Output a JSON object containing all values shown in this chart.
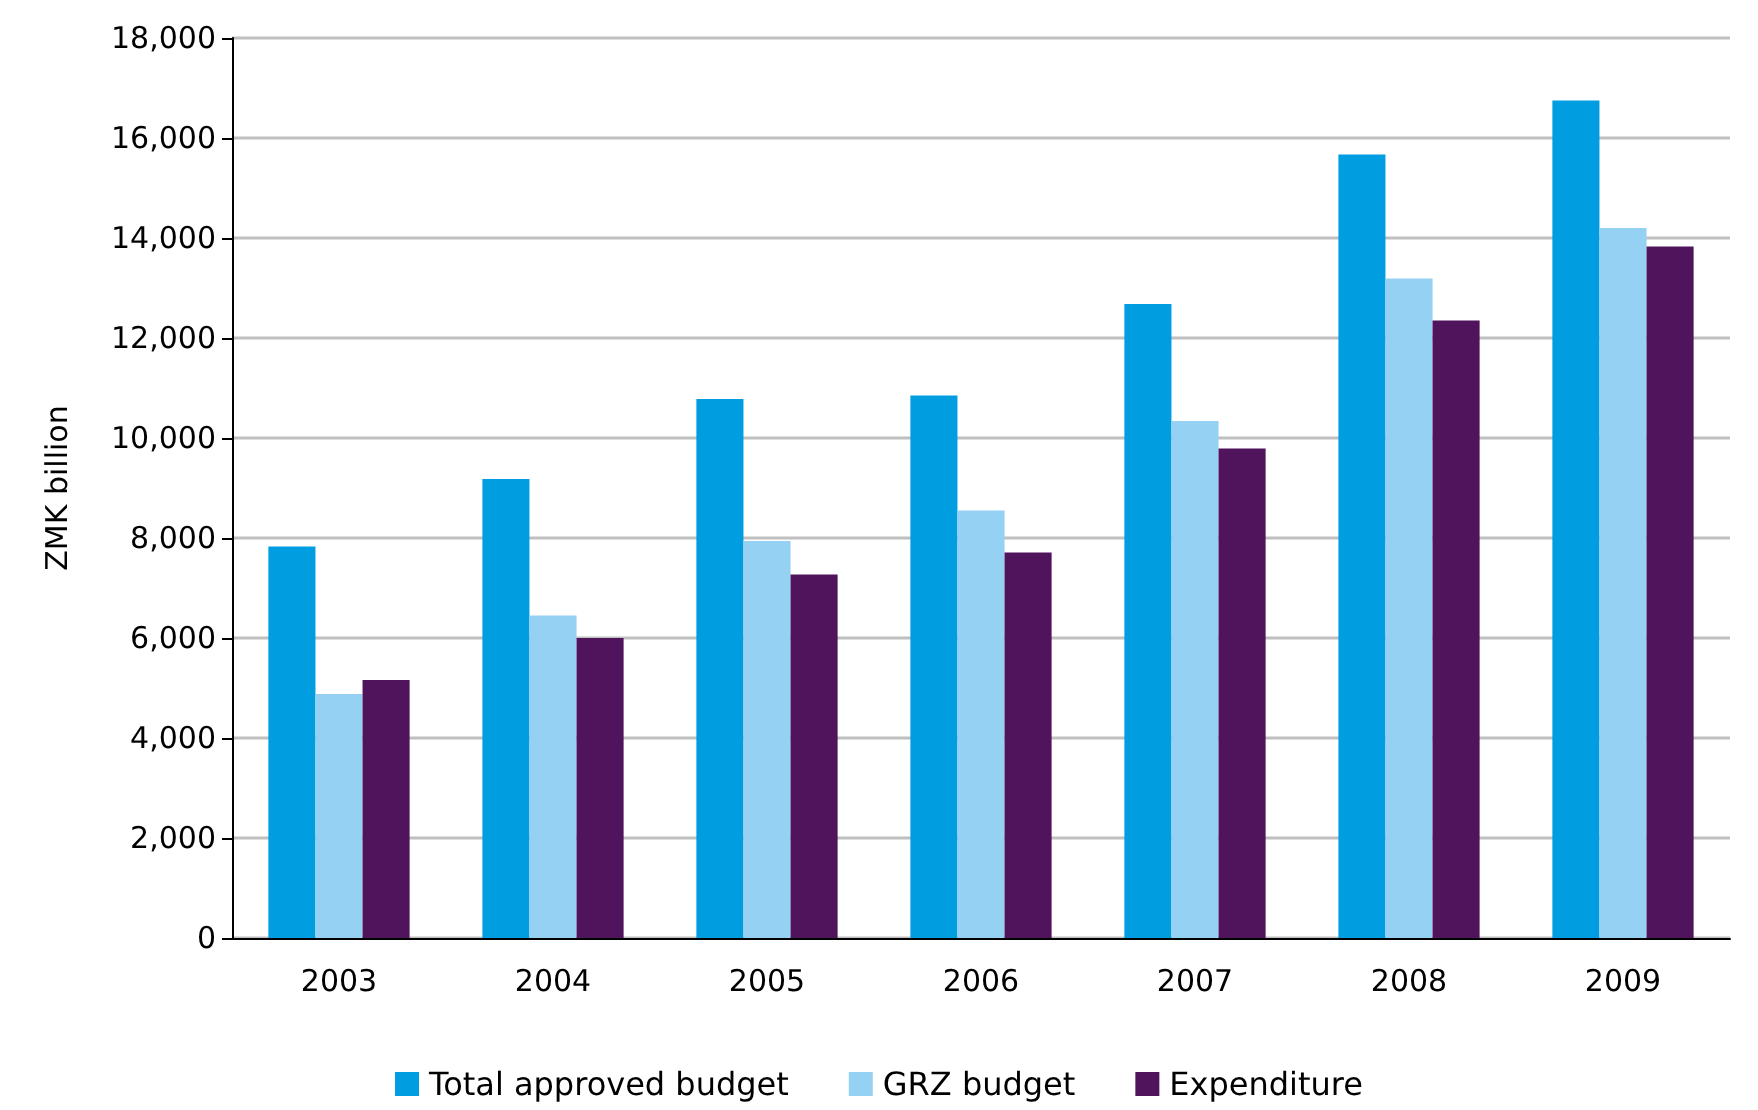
{
  "chart_data": {
    "type": "bar",
    "ylabel": "ZMK billion",
    "categories": [
      "2003",
      "2004",
      "2005",
      "2006",
      "2007",
      "2008",
      "2009"
    ],
    "series": [
      {
        "name": "Total approved budget",
        "color": "#009ee0",
        "values": [
          7830,
          9180,
          10780,
          10850,
          12680,
          15670,
          16750
        ]
      },
      {
        "name": "GRZ budget",
        "color": "#95d1f3",
        "values": [
          4880,
          6450,
          7940,
          8550,
          10340,
          13190,
          14200
        ]
      },
      {
        "name": "Expenditure",
        "color": "#50145c",
        "values": [
          5160,
          6000,
          7270,
          7710,
          9790,
          12350,
          13830
        ]
      }
    ],
    "ylim": [
      0,
      18000
    ],
    "yticks": [
      0,
      {
        "value": 2000,
        "label": "2,000"
      },
      {
        "value": 4000,
        "label": "4,000"
      },
      {
        "value": 6000,
        "label": "6,000"
      },
      {
        "value": 8000,
        "label": "8,000"
      },
      {
        "value": 10000,
        "label": "10,000"
      },
      {
        "value": 12000,
        "label": "12,000"
      },
      {
        "value": 14000,
        "label": "14,000"
      },
      {
        "value": 16000,
        "label": "16,000"
      },
      {
        "value": 18000,
        "label": "18,000"
      }
    ],
    "grid": "y",
    "legend": "bottom"
  }
}
